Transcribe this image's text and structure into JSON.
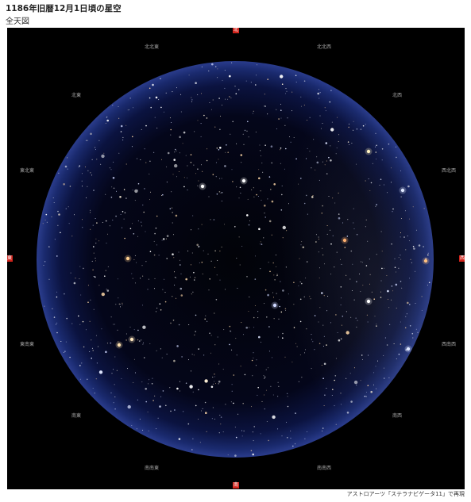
{
  "header": {
    "title": "1186年旧暦12月1日頃の星空",
    "subtitle": "全天図"
  },
  "sky": {
    "cardinal": {
      "north": "北",
      "south": "南",
      "east": "東",
      "west": "西"
    },
    "directions": {
      "nne": "北北東",
      "nnw": "北北西",
      "ne": "北東",
      "nw": "北西",
      "ene": "東北東",
      "wnw": "西北西",
      "ese": "東南東",
      "wsw": "西南西",
      "se": "南東",
      "sw": "南西",
      "sse": "南南東",
      "ssw": "南南西"
    },
    "colors": {
      "background": "#000000",
      "horizon_glow": "#1e2f78",
      "cardinal_marker": "#d1241c"
    }
  },
  "credit": "アストロアーツ「ステラナビゲータ11」で再現"
}
